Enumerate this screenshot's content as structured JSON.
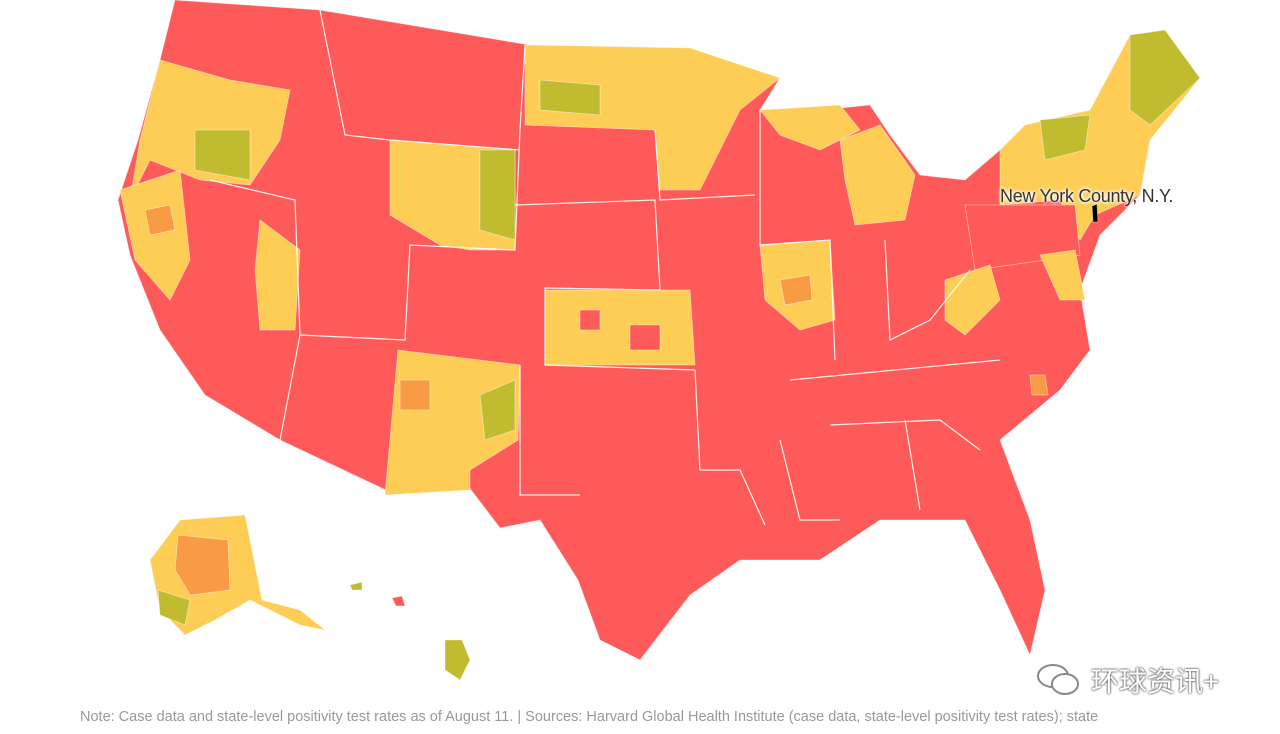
{
  "map": {
    "highlight_label": "New York County, N.Y.",
    "colors": {
      "high": "#ff5a5a",
      "medium_high": "#f99b45",
      "medium": "#fdcd55",
      "low": "#c0bb2f",
      "highlight": "#000000",
      "border": "#ffffff"
    }
  },
  "footer": {
    "note": "Note: Case data and state-level positivity test rates as of August 11. | Sources: Harvard Global Health Institute (case data, state-level positivity test rates); state"
  },
  "watermark": {
    "text": "环球资讯+"
  }
}
